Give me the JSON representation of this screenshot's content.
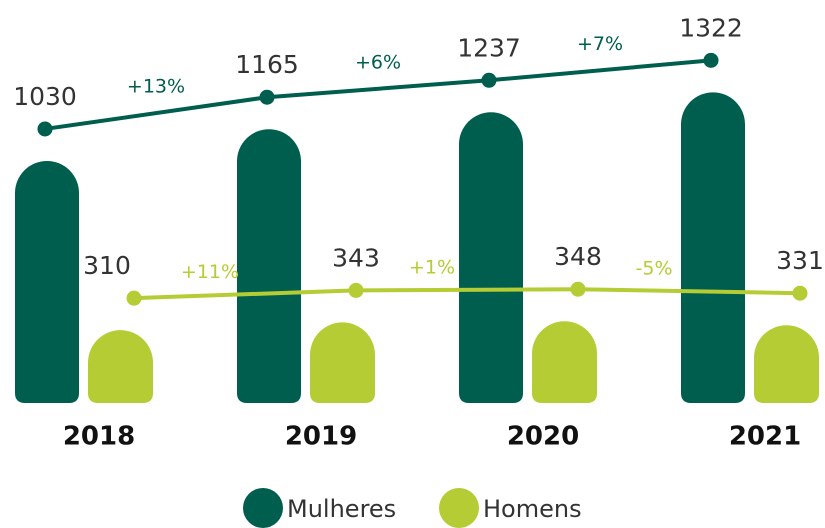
{
  "chart_data": {
    "type": "bar",
    "categories": [
      "2018",
      "2019",
      "2020",
      "2021"
    ],
    "ylim": [
      0,
      1500
    ],
    "series": [
      {
        "name": "Mulheres",
        "color": "#005e4e",
        "values": [
          1030,
          1165,
          1237,
          1322
        ],
        "changes": [
          "+13%",
          "+6%",
          "+7%"
        ],
        "change_color": "#005e4e"
      },
      {
        "name": "Homens",
        "color": "#b5cc34",
        "values": [
          310,
          343,
          348,
          331
        ],
        "changes": [
          "+11%",
          "+1%",
          "-5%"
        ],
        "change_color": "#b5cc34"
      }
    ]
  }
}
